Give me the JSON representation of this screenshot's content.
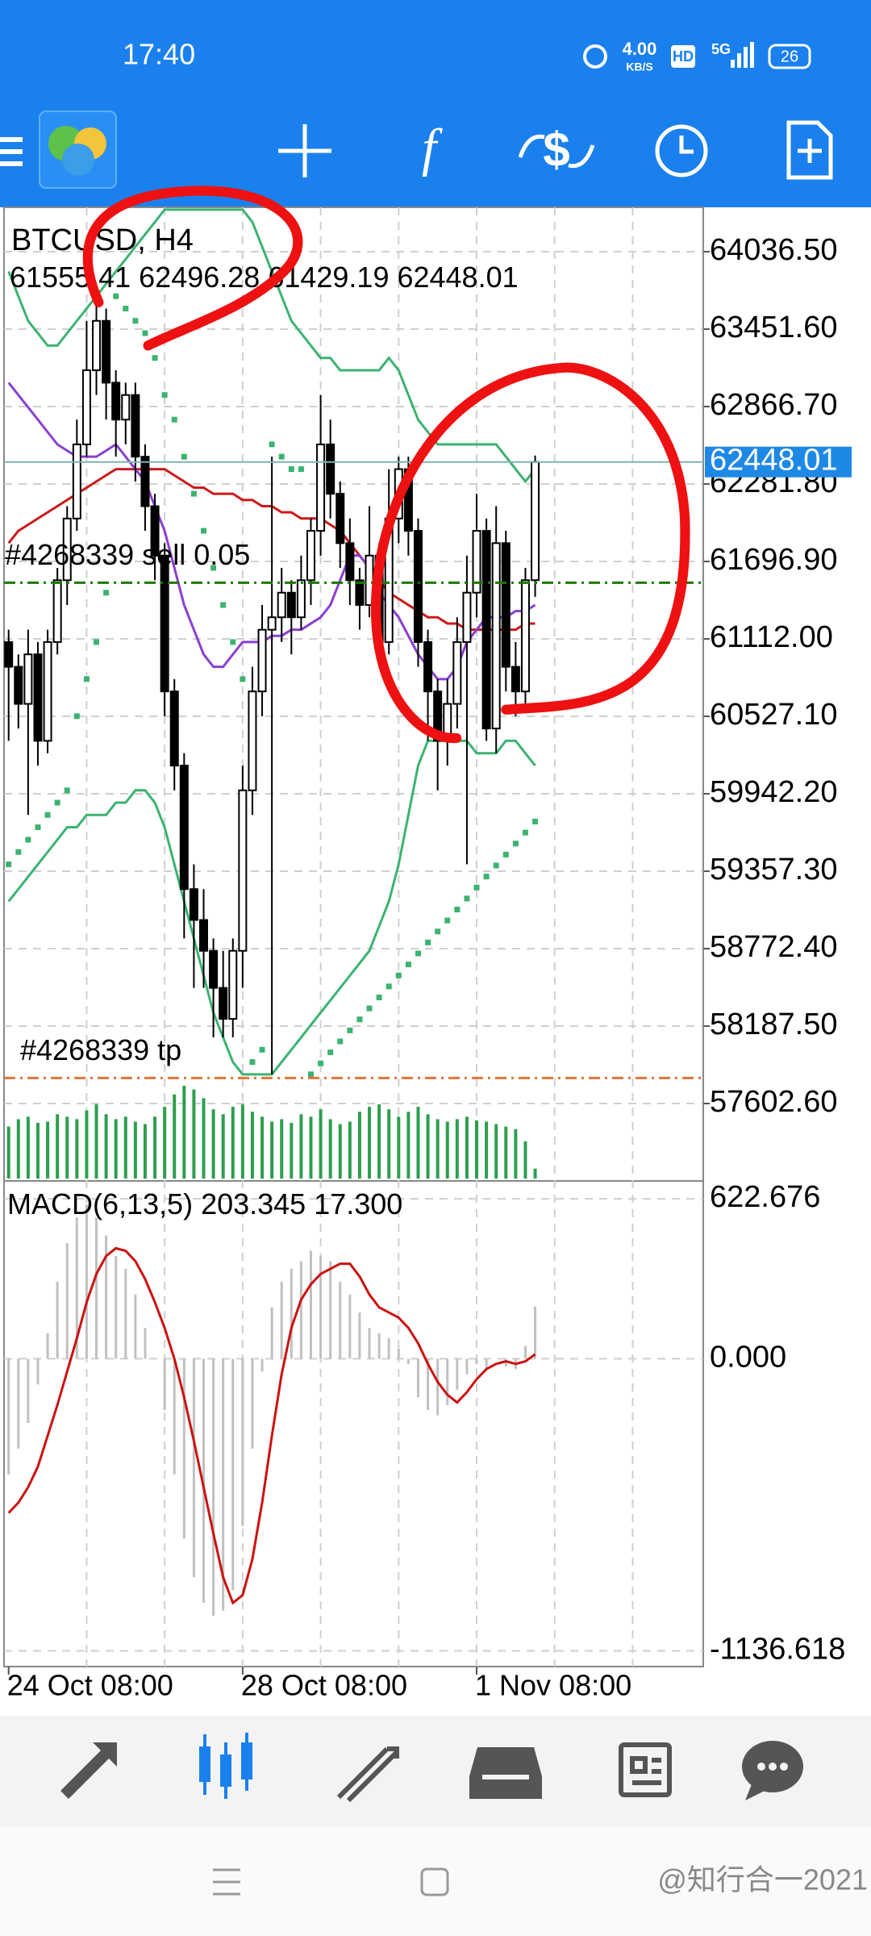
{
  "status_bar": {
    "time": "17:40",
    "net_speed": "4.00",
    "net_unit": "KB/S",
    "hd": "HD",
    "network": "5G",
    "battery": "26"
  },
  "chart_data": {
    "type": "candlestick",
    "title": "BTCUSD, H4",
    "categories": [
      "24 Oct 08:00",
      null,
      null,
      null,
      null,
      null,
      null,
      null,
      null,
      null,
      null,
      null,
      null,
      null,
      null,
      null,
      null,
      null,
      null,
      null,
      null,
      null,
      null,
      null,
      "28 Oct 08:00",
      null,
      null,
      null,
      null,
      null,
      null,
      null,
      null,
      null,
      null,
      null,
      null,
      null,
      null,
      null,
      null,
      null,
      null,
      null,
      null,
      null,
      null,
      null,
      "1 Nov 08:00",
      null,
      null,
      null,
      null,
      null,
      null
    ],
    "open": [
      61088,
      60901,
      60621,
      60995,
      60342,
      61088,
      61555,
      62021,
      62581,
      63141,
      63514,
      63047,
      62768,
      62954,
      62488,
      62114,
      61741,
      60715,
      60155,
      59222,
      58989,
      58756,
      58476,
      58242,
      58756,
      59968,
      60715,
      61181,
      61275,
      61461,
      61275,
      61555,
      61928,
      62581,
      62208,
      61835,
      61555,
      61368,
      61741,
      61088,
      62021,
      62394,
      61928,
      61088,
      60715,
      60342,
      60621,
      61088,
      61461,
      61928,
      60435,
      61835,
      60901,
      60715,
      61555.41
    ],
    "high": [
      61181,
      60995,
      61181,
      61088,
      61181,
      61648,
      62114,
      62768,
      63514,
      63700,
      63607,
      63141,
      63047,
      63047,
      62581,
      62208,
      61835,
      60808,
      60248,
      59409,
      59222,
      58849,
      58756,
      58849,
      60155,
      60901,
      61368,
      62488,
      61648,
      61555,
      61741,
      62021,
      62954,
      62768,
      62301,
      62021,
      61648,
      62114,
      61835,
      62394,
      62488,
      62488,
      62021,
      61181,
      60808,
      60808,
      61275,
      61741,
      62208,
      62021,
      62114,
      61928,
      61088,
      61648,
      62496.28
    ],
    "low": [
      60342,
      60435,
      59782,
      60155,
      60248,
      60995,
      61368,
      61928,
      62488,
      62954,
      62768,
      62488,
      62581,
      62301,
      61928,
      61555,
      60528,
      59968,
      58849,
      58476,
      58476,
      58102,
      58102,
      58102,
      58476,
      59782,
      60528,
      57823,
      61088,
      60995,
      61181,
      61368,
      61741,
      62021,
      61648,
      61368,
      61181,
      61275,
      60901,
      60995,
      61835,
      61741,
      60901,
      60342,
      59968,
      60155,
      60435,
      59409,
      61275,
      60342,
      60248,
      60715,
      60528,
      60621,
      61429.19
    ],
    "close": [
      60901,
      60621,
      60995,
      60342,
      61088,
      61555,
      62021,
      62581,
      63141,
      63514,
      63047,
      62768,
      62954,
      62488,
      62114,
      61741,
      60715,
      60155,
      59222,
      58989,
      58756,
      58476,
      58242,
      58756,
      59968,
      60715,
      61181,
      61275,
      61461,
      61275,
      61555,
      61928,
      62581,
      62208,
      61835,
      61555,
      61368,
      61741,
      61088,
      62021,
      62394,
      61928,
      61088,
      60715,
      60342,
      60621,
      61088,
      61461,
      61928,
      60435,
      61835,
      60901,
      60715,
      61555.41,
      62448.01
    ],
    "ylim": [
      57017.7,
      64371.5
    ],
    "yticks": [
      {
        "value": 64036.5,
        "label": "64036.50"
      },
      {
        "value": 63451.6,
        "label": "63451.60"
      },
      {
        "value": 62866.7,
        "label": "62866.70"
      },
      {
        "value": 62281.8,
        "label": "62281.80"
      },
      {
        "value": 61696.9,
        "label": "61696.90"
      },
      {
        "value": 61112,
        "label": "61112.00"
      },
      {
        "value": 60527.1,
        "label": "60527.10"
      },
      {
        "value": 59942.2,
        "label": "59942.20"
      },
      {
        "value": 59357.3,
        "label": "59357.30"
      },
      {
        "value": 58772.4,
        "label": "58772.40"
      },
      {
        "value": 58187.5,
        "label": "58187.50"
      },
      {
        "value": 57602.6,
        "label": "57602.60"
      }
    ],
    "grid": true,
    "overlays": [
      {
        "color": "#3cb371",
        "values": [
          63887,
          63700,
          63514,
          63421,
          63327,
          63327,
          63421,
          63514,
          63607,
          63700,
          63794,
          63887,
          63980,
          64074,
          64167,
          64260,
          64354,
          64354,
          64354,
          64354,
          64354,
          64354,
          64354,
          64354,
          64354,
          64260,
          64074,
          63887,
          63700,
          63514,
          63421,
          63327,
          63234,
          63234,
          63141,
          63141,
          63141,
          63141,
          63141,
          63234,
          63141,
          62954,
          62768,
          62674,
          62581,
          62581,
          62581,
          62581,
          62581,
          62581,
          62581,
          62488,
          62394,
          62301,
          62394
        ]
      },
      {
        "color": "#3cb371",
        "values": [
          59129,
          59222,
          59316,
          59409,
          59502,
          59595,
          59689,
          59689,
          59782,
          59782,
          59782,
          59875,
          59875,
          59968,
          59968,
          59875,
          59689,
          59409,
          59129,
          58849,
          58569,
          58289,
          58102,
          57916,
          57823,
          57823,
          57823,
          57823,
          57916,
          58009,
          58102,
          58196,
          58289,
          58382,
          58476,
          58569,
          58662,
          58756,
          58942,
          59129,
          59409,
          59782,
          60155,
          60342,
          60342,
          60342,
          60342,
          60342,
          60248,
          60248,
          60248,
          60342,
          60342,
          60248,
          60155
        ]
      },
      {
        "color": "#cc1a1a",
        "values": [
          61835,
          61928,
          61974,
          62021,
          62068,
          62114,
          62161,
          62208,
          62254,
          62301,
          62347,
          62394,
          62394,
          62394,
          62394,
          62394,
          62394,
          62347,
          62301,
          62254,
          62254,
          62208,
          62208,
          62208,
          62161,
          62161,
          62114,
          62114,
          62068,
          62068,
          62021,
          62021,
          62021,
          61974,
          61928,
          61835,
          61741,
          61648,
          61555,
          61461,
          61415,
          61368,
          61322,
          61275,
          61275,
          61228,
          61228,
          61181,
          61181,
          61181,
          61181,
          61181,
          61181,
          61228,
          61228
        ]
      },
      {
        "color": "#8a3fd1",
        "values": [
          63047,
          62954,
          62861,
          62768,
          62674,
          62581,
          62534,
          62488,
          62488,
          62488,
          62534,
          62581,
          62488,
          62394,
          62301,
          62114,
          61928,
          61648,
          61368,
          61181,
          60995,
          60901,
          60901,
          60995,
          61088,
          61088,
          61088,
          61135,
          61135,
          61181,
          61181,
          61228,
          61275,
          61368,
          61555,
          61741,
          61741,
          61648,
          61461,
          61368,
          61275,
          61135,
          60995,
          60901,
          60808,
          60808,
          60901,
          61088,
          61181,
          61275,
          61275,
          61275,
          61322,
          61322,
          61368
        ]
      }
    ],
    "sar": {
      "color": "#3cb371",
      "values": [
        59409,
        59502,
        59595,
        59689,
        59782,
        59875,
        59968,
        60528,
        60808,
        61088,
        61461,
        63700,
        63607,
        63514,
        63421,
        63234,
        62954,
        62768,
        62488,
        62208,
        61928,
        61648,
        61368,
        61088,
        60808,
        57916,
        58009,
        62581,
        62488,
        62394,
        62394,
        57823,
        57906,
        57989,
        58072,
        58155,
        58238,
        58321,
        58404,
        58487,
        58570,
        58653,
        58736,
        58819,
        58902,
        58985,
        59068,
        59151,
        59234,
        59317,
        59400,
        59483,
        59566,
        59649,
        59732
      ]
    },
    "volume": {
      "color": "#2e9e4f",
      "values": [
        4200,
        4800,
        5000,
        4500,
        4600,
        5200,
        5000,
        4800,
        5500,
        6000,
        5200,
        4800,
        5000,
        4600,
        4400,
        5000,
        5800,
        6800,
        7500,
        7200,
        6500,
        5600,
        5200,
        5800,
        6000,
        5400,
        5000,
        4600,
        4800,
        4500,
        5200,
        5000,
        5600,
        4800,
        4400,
        4600,
        5400,
        5800,
        6000,
        5600,
        5000,
        5400,
        5800,
        5200,
        4800,
        4600,
        4800,
        5000,
        4700,
        4600,
        4400,
        4200,
        4000,
        3000,
        800
      ]
    },
    "orders": [
      {
        "label": "#4268339 sell 0.05",
        "price": 61536,
        "color": "#1a7a00"
      },
      {
        "label": "#4268339 tp",
        "price": 57795,
        "color": "#e0763a"
      }
    ],
    "macd": {
      "label": "MACD(6,13,5)",
      "ylim": [
        -1198,
        692
      ],
      "yticks": [
        622.676,
        {
          "value": 0,
          "label": "0.000"
        },
        -1136.618
      ],
      "histogram": {
        "color": "#c0c0c0",
        "values": [
          -450,
          -350,
          -250,
          -100,
          100,
          300,
          450,
          550,
          600,
          550,
          480,
          400,
          350,
          250,
          120,
          0,
          -200,
          -450,
          -700,
          -850,
          -950,
          -1000,
          -980,
          -900,
          -650,
          -350,
          -50,
          200,
          300,
          350,
          380,
          420,
          400,
          380,
          300,
          250,
          180,
          120,
          100,
          80,
          40,
          -20,
          -150,
          -200,
          -220,
          -180,
          -120,
          -60,
          -20,
          -40,
          0,
          -30,
          -40,
          50,
          203.345
        ]
      },
      "signal": {
        "color": "#cc1111",
        "values": [
          -600,
          -560,
          -500,
          -420,
          -300,
          -180,
          -50,
          80,
          220,
          330,
          400,
          430,
          420,
          380,
          310,
          220,
          120,
          0,
          -150,
          -320,
          -500,
          -680,
          -850,
          -950,
          -920,
          -780,
          -560,
          -300,
          -60,
          120,
          230,
          290,
          330,
          350,
          370,
          370,
          320,
          250,
          200,
          180,
          160,
          120,
          60,
          -20,
          -90,
          -140,
          -170,
          -130,
          -80,
          -40,
          -20,
          -10,
          -20,
          -10,
          17.3
        ],
        "value_labels": [
          null,
          null,
          null,
          null,
          null,
          null,
          null,
          null,
          null,
          null,
          null,
          null,
          null,
          null,
          null,
          null,
          null,
          null,
          null,
          null,
          null,
          null,
          null,
          null,
          null,
          null,
          null,
          null,
          null,
          null,
          null,
          null,
          null,
          null,
          null,
          null,
          null,
          null,
          null,
          null,
          null,
          null,
          null,
          null,
          null,
          null,
          null,
          null,
          null,
          null,
          null,
          null,
          null,
          null,
          "17.300"
        ]
      }
    }
  },
  "watermark": "@知行合一2021"
}
